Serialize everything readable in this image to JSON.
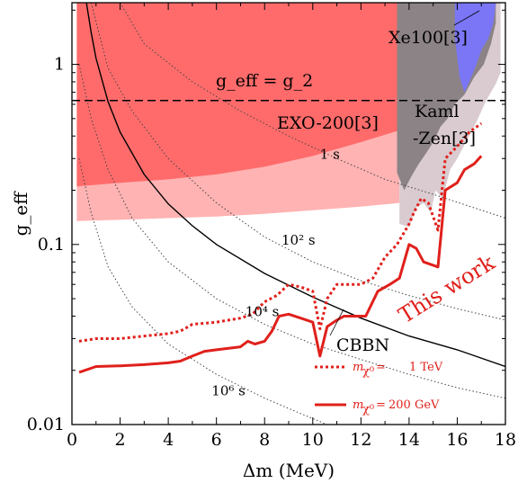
{
  "chart_data": {
    "type": "line",
    "xlabel": "Δm (MeV)",
    "ylabel": "g_eff",
    "xlim": [
      0,
      18
    ],
    "ylim": [
      0.01,
      2.2
    ],
    "yscale": "log",
    "xticks": [
      0,
      2,
      4,
      6,
      8,
      10,
      12,
      14,
      16,
      18
    ],
    "yticks": [
      {
        "value": 0.01,
        "label": "0.01"
      },
      {
        "value": 0.1,
        "label": "0.1"
      },
      {
        "value": 1,
        "label": "1"
      }
    ],
    "colors": {
      "exo_dark": "#ff6b6b",
      "exo_light": "#ffb3b3",
      "kam_light": "#d9cbd0",
      "kam_dark": "#8c8387",
      "xe": "#7a76f5",
      "work": "#e0201b"
    },
    "regions": [
      {
        "name": "EXO-200[3]",
        "label": "EXO-200[3]",
        "color": "exo_dark",
        "boundary": [
          [
            0.2,
            0.21
          ],
          [
            2,
            0.22
          ],
          [
            4,
            0.23
          ],
          [
            6,
            0.245
          ],
          [
            8,
            0.27
          ],
          [
            10,
            0.31
          ],
          [
            12,
            0.37
          ],
          [
            13.6,
            0.43
          ]
        ]
      },
      {
        "name": "EXO light",
        "color": "exo_light",
        "boundary": [
          [
            0.2,
            0.135
          ],
          [
            2,
            0.137
          ],
          [
            4,
            0.14
          ],
          [
            6,
            0.143
          ],
          [
            8,
            0.148
          ],
          [
            10,
            0.155
          ],
          [
            12,
            0.162
          ],
          [
            13.6,
            0.17
          ]
        ]
      },
      {
        "name": "Kaml -Zen[3]",
        "label_top": "Kaml",
        "label_bottom": "-Zen[3]",
        "color": "kam_dark"
      },
      {
        "name": "Xe100[3]",
        "label": "Xe100[3]",
        "color": "xe"
      }
    ],
    "g_eff_eq_g2": {
      "label": "g_eff = g_2",
      "value": 0.63
    },
    "lifetime_labels": [
      {
        "text": "1 s",
        "x": 10.3,
        "y": 0.3
      },
      {
        "text": "10² s",
        "x": 8.7,
        "y": 0.1
      },
      {
        "text": "10⁴ s",
        "x": 7.2,
        "y": 0.04
      },
      {
        "text": "10⁶ s",
        "x": 5.8,
        "y": 0.0145
      }
    ],
    "cbbn": {
      "label": "CBBN",
      "x": [
        0.6,
        0.8,
        1,
        1.5,
        2,
        3,
        4,
        5,
        6,
        8,
        10,
        12,
        14,
        16,
        18
      ],
      "y": [
        2.2,
        1.5,
        1.08,
        0.62,
        0.42,
        0.245,
        0.168,
        0.127,
        0.1,
        0.069,
        0.051,
        0.039,
        0.031,
        0.026,
        0.021
      ]
    },
    "series": [
      {
        "name": "m_χ0 = 1 TeV",
        "legend_sym": "m",
        "legend_sub": "χ⁰",
        "legend_eq": "=",
        "legend_val": "1 TeV",
        "style": "dotted",
        "x": [
          0.3,
          1,
          2,
          3,
          4,
          4.5,
          5,
          6,
          7,
          7.5,
          8,
          8.5,
          9,
          9.5,
          10,
          10.3,
          10.6,
          11,
          11.5,
          12,
          12.5,
          13,
          13.5,
          14,
          14.2,
          14.5,
          14.8,
          15.2,
          15.5,
          16,
          16.5,
          17
        ],
        "y": [
          0.029,
          0.03,
          0.03,
          0.031,
          0.032,
          0.033,
          0.036,
          0.037,
          0.039,
          0.041,
          0.048,
          0.052,
          0.06,
          0.058,
          0.055,
          0.034,
          0.05,
          0.06,
          0.06,
          0.06,
          0.065,
          0.085,
          0.1,
          0.13,
          0.15,
          0.18,
          0.17,
          0.12,
          0.3,
          0.35,
          0.42,
          0.47
        ]
      },
      {
        "name": "m_χ0 = 200 GeV",
        "legend_sym": "m",
        "legend_sub": "χ⁰",
        "legend_eq": "=",
        "legend_val": "200 GeV",
        "style": "solid",
        "x": [
          0.3,
          1,
          2,
          3,
          4,
          4.5,
          5,
          5.5,
          6,
          6.5,
          7,
          7.3,
          7.6,
          8,
          8.3,
          8.6,
          9,
          9.5,
          10,
          10.3,
          10.6,
          11,
          11.3,
          11.7,
          12.2,
          12.7,
          13.2,
          13.6,
          14,
          14.3,
          14.6,
          15.2,
          15.5,
          16,
          16.3,
          16.7,
          17
        ],
        "y": [
          0.0195,
          0.021,
          0.0212,
          0.0215,
          0.022,
          0.0225,
          0.024,
          0.0255,
          0.026,
          0.0265,
          0.027,
          0.029,
          0.028,
          0.029,
          0.033,
          0.04,
          0.041,
          0.039,
          0.037,
          0.024,
          0.035,
          0.038,
          0.04,
          0.04,
          0.04,
          0.055,
          0.06,
          0.065,
          0.1,
          0.095,
          0.08,
          0.075,
          0.2,
          0.22,
          0.26,
          0.28,
          0.31
        ]
      }
    ],
    "annotation": {
      "text": "This work"
    }
  }
}
